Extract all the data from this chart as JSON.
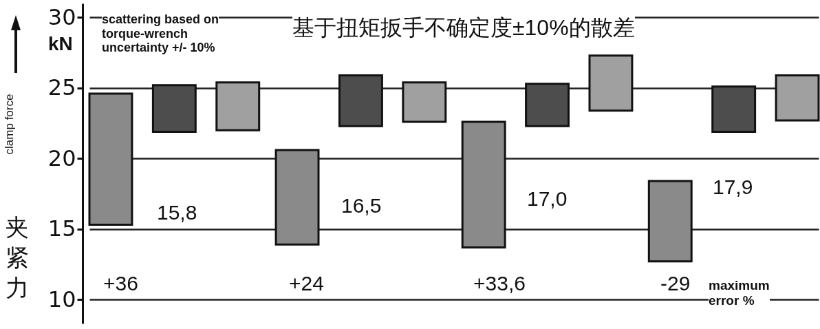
{
  "chart_data": {
    "type": "bar",
    "ylabel": "clamp force",
    "categories": [
      null,
      null,
      null,
      null
    ],
    "series": [
      {
        "color": "#8a8a8a",
        "base": [
          15.3,
          13.9,
          13.7,
          12.7
        ],
        "values": [
          9.3,
          6.7,
          8.9,
          5.7
        ]
      },
      {
        "color": "#4d4d4d",
        "base": [
          21.9,
          22.3,
          22.3,
          21.9
        ],
        "values": [
          3.3,
          3.6,
          3.0,
          3.2
        ]
      },
      {
        "color": "#a0a0a0",
        "base": [
          22.0,
          22.6,
          23.4,
          22.7
        ],
        "values": [
          3.4,
          2.8,
          3.9,
          3.2
        ]
      }
    ],
    "ylim": [
      8.3,
      31
    ],
    "yticks": [
      10,
      15,
      20,
      25,
      30
    ],
    "grid": "y",
    "tick_labels": "y",
    "annotations": [
      "scattering based on\ntorque-wrench\nuncertainty +/- 10%",
      "基于扭矩扳手不确定度±10%的散差",
      "kN",
      "夹紧力",
      "15,8",
      "16,5",
      "17,0",
      "17,9",
      "+36",
      "+24",
      "+33,6",
      "-29",
      "maximum\nerror %"
    ]
  }
}
